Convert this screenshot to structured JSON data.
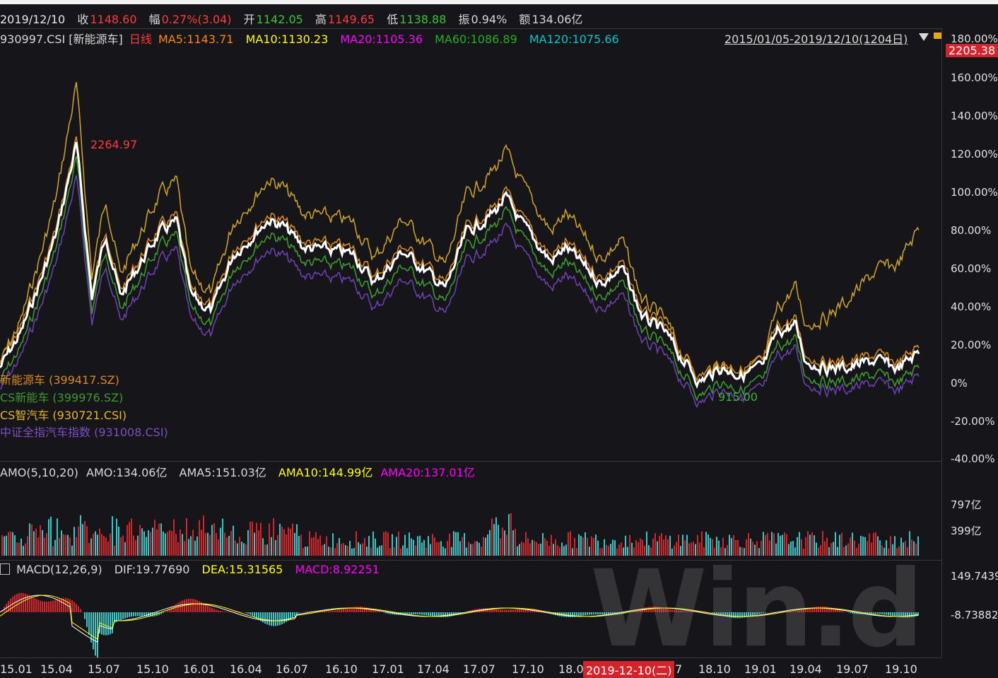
{
  "info_bar": {
    "date": "2019/12/10",
    "close_label": "收",
    "close": "1148.60",
    "change_label": "幅",
    "change": "0.27%(3.04)",
    "open_label": "开",
    "open": "1142.05",
    "high_label": "高",
    "high": "1149.65",
    "low_label": "低",
    "low": "1138.88",
    "amp_label": "振",
    "amp": "0.94%",
    "amount_label": "额",
    "amount": "134.06亿"
  },
  "ma_bar": {
    "code": "930997.CSI [新能源车]",
    "period": "日线",
    "ma5": "MA5:1143.71",
    "ma10": "MA10:1130.23",
    "ma20": "MA20:1105.36",
    "ma60": "MA60:1086.89",
    "ma120": "MA120:1075.66",
    "range": "2015/01/05-2019/12/10(1204日)",
    "dropdown_icon": "triangle-down-icon",
    "lock_icon": "lock-icon"
  },
  "price_tag": "2205.38",
  "annotations": {
    "max_label": "2264.97",
    "min_label": "915.00"
  },
  "legend": [
    {
      "text": "新能源车 (399417.SZ)",
      "color": "#d98a1a"
    },
    {
      "text": "CS新能车 (399976.SZ)",
      "color": "#3c9a2c"
    },
    {
      "text": "CS智汽车 (930721.CSI)",
      "color": "#e6b820"
    },
    {
      "text": "中证全指汽车指数 (931008.CSI)",
      "color": "#7a4fc0"
    }
  ],
  "y_axis_main": [
    "180.00%",
    "160.00%",
    "140.00%",
    "120.00%",
    "100.00%",
    "80.00%",
    "60.00%",
    "40.00%",
    "20.00%",
    "0%",
    "-20.00%",
    "-40.00%"
  ],
  "amo_bar": {
    "title": "AMO(5,10,20)",
    "amo": "AMO:134.06亿",
    "ama5": "AMA5:151.03亿",
    "ama10": "AMA10:144.99亿",
    "ama20": "AMA20:137.01亿"
  },
  "y_axis_amo": [
    "797亿",
    "399亿"
  ],
  "macd_bar": {
    "help_icon": "question-icon",
    "title": "MACD(12,26,9)",
    "dif": "DIF:19.77690",
    "dea": "DEA:15.31565",
    "macd": "MACD:8.92251"
  },
  "y_axis_macd": [
    "149.7439",
    "-8.73882"
  ],
  "x_axis": [
    "15.01",
    "15.04",
    "15.07",
    "15.10",
    "16.01",
    "16.04",
    "16.07",
    "16.10",
    "17.01",
    "17.04",
    "17.07",
    "17.10",
    "18.0",
    "7",
    "18.10",
    "19.01",
    "19.04",
    "19.07",
    "19.10"
  ],
  "cursor_date": "2019-12-10(二)",
  "watermark": "Win.d",
  "colors": {
    "main": "#ffffff",
    "orange": "#d98a1a",
    "green": "#3c9a2c",
    "gold": "#c9a024",
    "purple": "#6a3fb0",
    "up": "#d5232b",
    "down": "#2ec9c9",
    "ma5": "#ff8800",
    "ma10": "#ffff00",
    "ma20": "#ff00ff",
    "ma60": "#22b022",
    "ma120": "#00c8c8"
  }
}
